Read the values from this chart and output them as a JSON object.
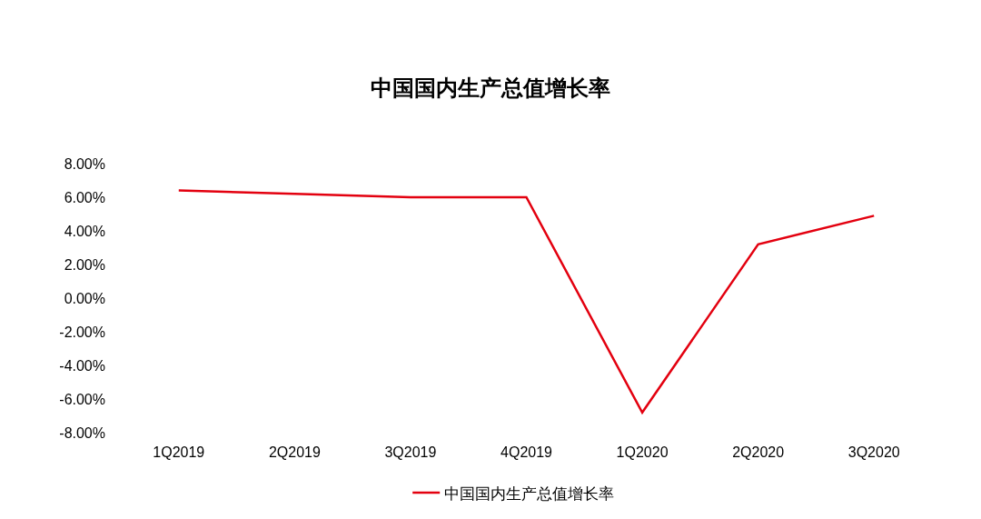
{
  "chart_data": {
    "type": "line",
    "title": "中国国内生产总值增长率",
    "categories": [
      "1Q2019",
      "2Q2019",
      "3Q2019",
      "4Q2019",
      "1Q2020",
      "2Q2020",
      "3Q2020"
    ],
    "series": [
      {
        "name": "中国国内生产总值增长率",
        "color": "#e3000f",
        "values": [
          6.4,
          6.2,
          6.0,
          6.0,
          -6.8,
          3.2,
          4.9
        ]
      }
    ],
    "ylim": [
      -8,
      8
    ],
    "yticks": [
      {
        "value": -8,
        "label": "-8.00%"
      },
      {
        "value": -6,
        "label": "-6.00%"
      },
      {
        "value": -4,
        "label": "-4.00%"
      },
      {
        "value": -2,
        "label": "-2.00%"
      },
      {
        "value": 0,
        "label": "0.00%"
      },
      {
        "value": 2,
        "label": "2.00%"
      },
      {
        "value": 4,
        "label": "4.00%"
      },
      {
        "value": 6,
        "label": "6.00%"
      },
      {
        "value": 8,
        "label": "8.00%"
      }
    ],
    "grid": false,
    "legend": "bottom",
    "marker": "none",
    "line_style": "solid"
  }
}
